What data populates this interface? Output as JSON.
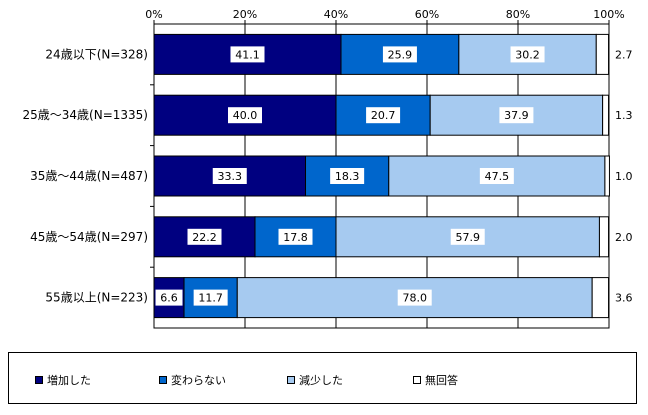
{
  "chart_data": {
    "type": "bar",
    "orientation": "horizontal",
    "stacked": true,
    "categories": [
      "24歳以下(N=328)",
      "25歳～34歳(N=1335)",
      "35歳～44歳(N=487)",
      "45歳～54歳(N=297)",
      "55歳以上(N=223)"
    ],
    "series": [
      {
        "name": "増加した",
        "values": [
          41.1,
          40.0,
          33.3,
          22.2,
          6.6
        ],
        "color": "#000080"
      },
      {
        "name": "変わらない",
        "values": [
          25.9,
          20.7,
          18.3,
          17.8,
          11.7
        ],
        "color": "#0066cc"
      },
      {
        "name": "減少した",
        "values": [
          30.2,
          37.9,
          47.5,
          57.9,
          78.0
        ],
        "color": "#a6caf0"
      },
      {
        "name": "無回答",
        "values": [
          2.7,
          1.3,
          1.0,
          2.0,
          3.6
        ],
        "color": "#ffffff"
      }
    ],
    "xticks": [
      "0%",
      "20%",
      "40%",
      "60%",
      "80%",
      "100%"
    ],
    "xlim": [
      0,
      100
    ],
    "legend_position": "bottom"
  }
}
